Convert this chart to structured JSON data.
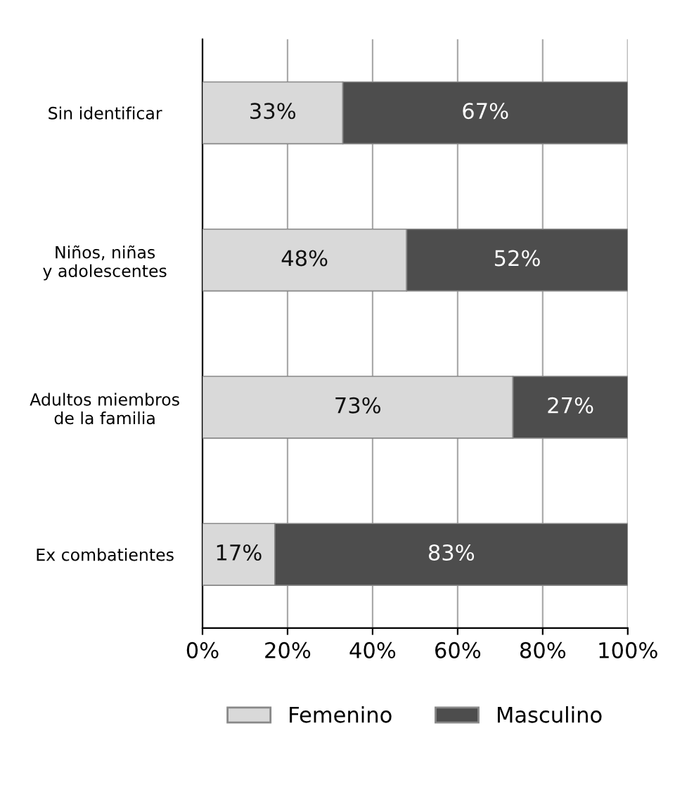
{
  "chart_data": {
    "type": "bar",
    "orientation": "horizontal",
    "stacked": true,
    "categories": [
      "Sin identificar",
      "Niños, niñas\ny adolescentes",
      "Adultos miembros\nde la familia",
      "Ex combatientes"
    ],
    "series": [
      {
        "name": "Femenino",
        "color": "#d9d9d9",
        "values": [
          33,
          48,
          73,
          17
        ],
        "value_labels": [
          "33%",
          "48%",
          "73%",
          "17%"
        ]
      },
      {
        "name": "Masculino",
        "color": "#4d4d4d",
        "values": [
          67,
          52,
          27,
          83
        ],
        "value_labels": [
          "67%",
          "52%",
          "27%",
          "83%"
        ]
      }
    ],
    "xlim": [
      0,
      100
    ],
    "xticks": [
      {
        "value": 0,
        "label": "0%"
      },
      {
        "value": 20,
        "label": "20%"
      },
      {
        "value": 40,
        "label": "40%"
      },
      {
        "value": 60,
        "label": "60%"
      },
      {
        "value": 80,
        "label": "80%"
      },
      {
        "value": 100,
        "label": "100%"
      }
    ],
    "grid": "x",
    "legend": "bottom"
  }
}
